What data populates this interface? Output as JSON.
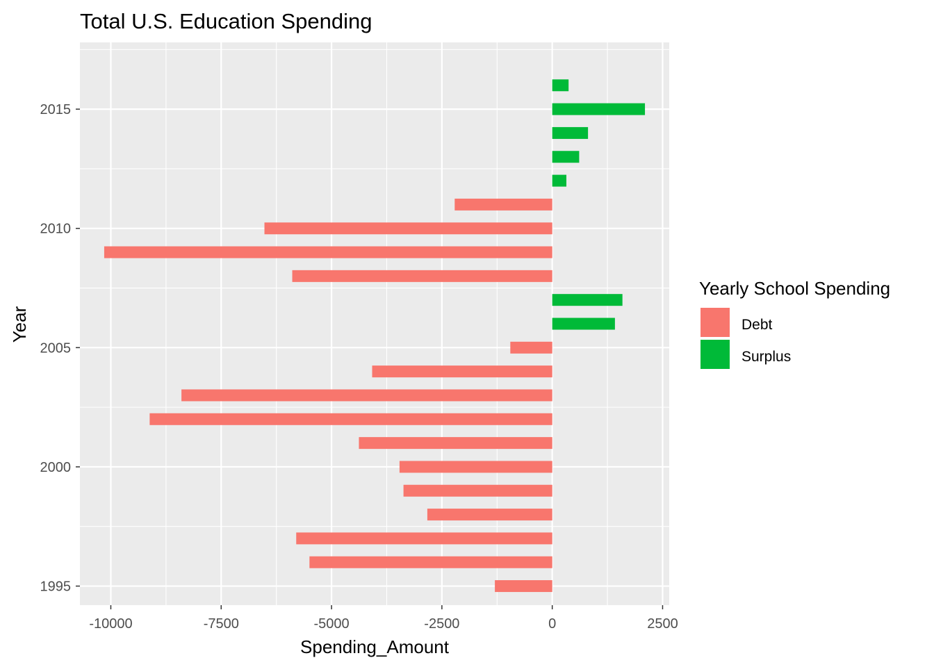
{
  "chart_data": {
    "type": "bar",
    "orientation": "horizontal",
    "title": "Total U.S. Education Spending",
    "xlabel": "Spending_Amount",
    "ylabel": "Year",
    "xlim": [
      -10700,
      2650
    ],
    "ylim": [
      1994.2,
      2017.8
    ],
    "x_ticks": [
      -10000,
      -7500,
      -5000,
      -2500,
      0,
      2500
    ],
    "x_tick_labels": [
      "-10000",
      "-7500",
      "-5000",
      "-2500",
      "0",
      "2500"
    ],
    "y_ticks": [
      1995,
      2000,
      2005,
      2010,
      2015
    ],
    "y_tick_labels": [
      "1995",
      "2000",
      "2005",
      "2010",
      "2015"
    ],
    "grid": true,
    "legend": {
      "title": "Yearly School Spending",
      "position": "right",
      "entries": [
        {
          "label": "Debt",
          "color": "#F8766D"
        },
        {
          "label": "Surplus",
          "color": "#00BA38"
        }
      ]
    },
    "colors": {
      "panel": "#EBEBEB",
      "grid_major": "#FFFFFF",
      "tick": "#333333",
      "tick_label": "#4D4D4D"
    },
    "data": [
      {
        "year": 1995,
        "value": -1300,
        "category": "Debt"
      },
      {
        "year": 1996,
        "value": -5500,
        "category": "Debt"
      },
      {
        "year": 1997,
        "value": -5800,
        "category": "Debt"
      },
      {
        "year": 1998,
        "value": -2830,
        "category": "Debt"
      },
      {
        "year": 1999,
        "value": -3370,
        "category": "Debt"
      },
      {
        "year": 2000,
        "value": -3460,
        "category": "Debt"
      },
      {
        "year": 2001,
        "value": -4380,
        "category": "Debt"
      },
      {
        "year": 2002,
        "value": -9120,
        "category": "Debt"
      },
      {
        "year": 2003,
        "value": -8400,
        "category": "Debt"
      },
      {
        "year": 2004,
        "value": -4080,
        "category": "Debt"
      },
      {
        "year": 2005,
        "value": -950,
        "category": "Debt"
      },
      {
        "year": 2006,
        "value": 1420,
        "category": "Surplus"
      },
      {
        "year": 2007,
        "value": 1590,
        "category": "Surplus"
      },
      {
        "year": 2008,
        "value": -5890,
        "category": "Debt"
      },
      {
        "year": 2009,
        "value": -10150,
        "category": "Debt"
      },
      {
        "year": 2010,
        "value": -6520,
        "category": "Debt"
      },
      {
        "year": 2011,
        "value": -2210,
        "category": "Debt"
      },
      {
        "year": 2012,
        "value": 320,
        "category": "Surplus"
      },
      {
        "year": 2013,
        "value": 610,
        "category": "Surplus"
      },
      {
        "year": 2014,
        "value": 810,
        "category": "Surplus"
      },
      {
        "year": 2015,
        "value": 2100,
        "category": "Surplus"
      },
      {
        "year": 2016,
        "value": 370,
        "category": "Surplus"
      }
    ]
  }
}
